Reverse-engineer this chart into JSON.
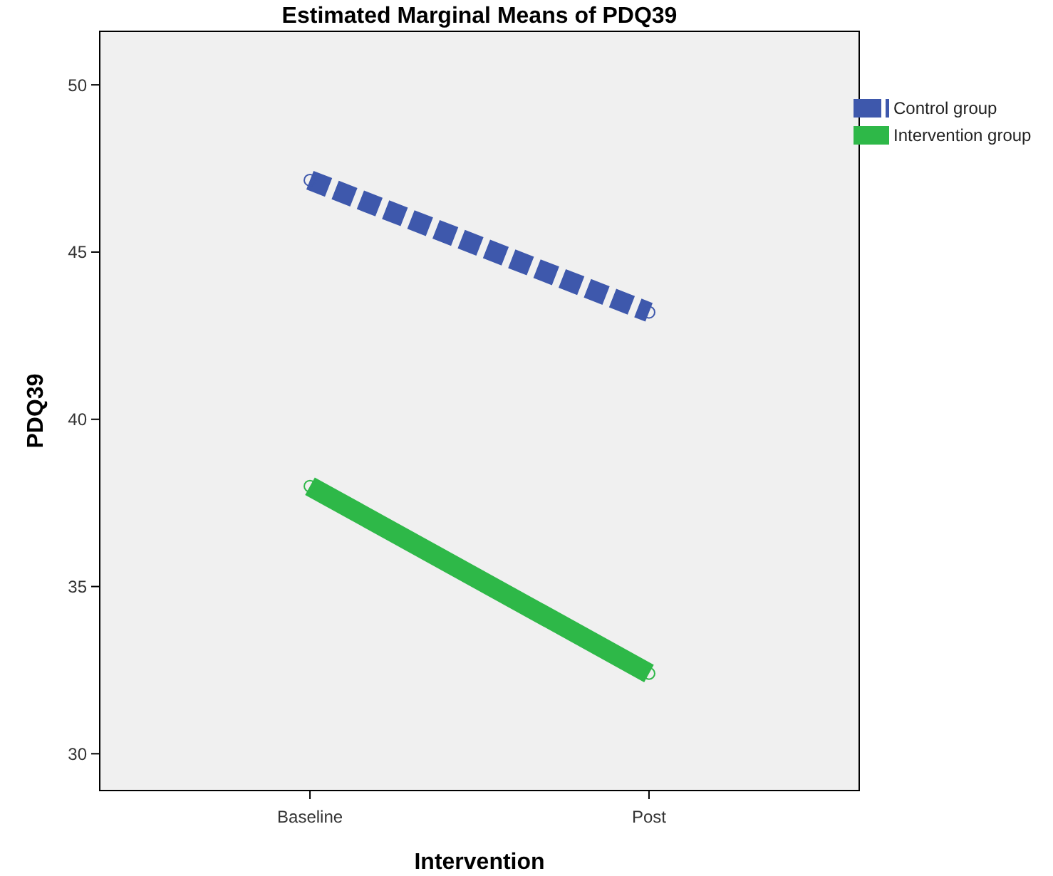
{
  "chart_data": {
    "type": "line",
    "title": "Estimated Marginal Means of PDQ39",
    "xlabel": "Intervention",
    "ylabel": "PDQ39",
    "categories": [
      "Baseline",
      "Post"
    ],
    "series": [
      {
        "name": "Control group",
        "color": "#3e58ac",
        "values": [
          47.15,
          43.2
        ],
        "line_style": "dashed"
      },
      {
        "name": "Intervention group",
        "color": "#2eb848",
        "values": [
          38.0,
          32.4
        ],
        "line_style": "solid"
      }
    ],
    "ylim": [
      28.9,
      51.6
    ],
    "yticks": [
      30,
      35,
      40,
      45,
      50
    ],
    "grid": false,
    "legend": "top right",
    "marker": "circle"
  }
}
